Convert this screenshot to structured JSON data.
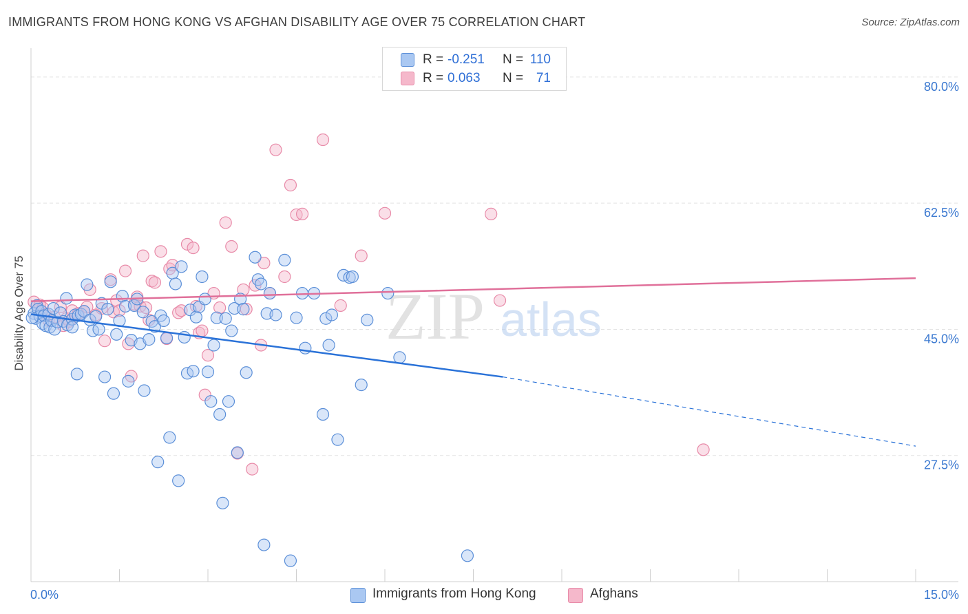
{
  "title": "IMMIGRANTS FROM HONG KONG VS AFGHAN DISABILITY AGE OVER 75 CORRELATION CHART",
  "source": "Source: ZipAtlas.com",
  "watermark": {
    "zip": "ZIP",
    "atlas": "atlas"
  },
  "legend": {
    "rows": [
      {
        "r_label": "R =",
        "r_value": "-0.251",
        "n_label": "N =",
        "n_value": "110"
      },
      {
        "r_label": "R =",
        "r_value": "0.063",
        "n_label": "N =",
        "n_value": "71"
      }
    ]
  },
  "bottom_legend": [
    "Immigrants from Hong Kong",
    "Afghans"
  ],
  "colors": {
    "blue_fill": "#aac8f2",
    "blue_stroke": "#5b8fd8",
    "blue_line": "#2a72d8",
    "pink_fill": "#f5b8cb",
    "pink_stroke": "#e88aa8",
    "pink_line": "#e0709a",
    "tick_label": "#3a78d0",
    "grid": "#e3e3e3"
  },
  "chart_data": {
    "type": "scatter",
    "title": "IMMIGRANTS FROM HONG KONG VS AFGHAN DISABILITY AGE OVER 75 CORRELATION CHART",
    "xlabel": "",
    "ylabel": "Disability Age Over 75",
    "xlim": [
      0,
      15
    ],
    "ylim": [
      10,
      84
    ],
    "x_tick_labels": [
      "0.0%",
      "15.0%"
    ],
    "y_ticks": [
      27.5,
      45.0,
      62.5,
      80.0
    ],
    "y_tick_labels": [
      "27.5%",
      "45.0%",
      "62.5%",
      "80.0%"
    ],
    "grid": "horizontal dashed",
    "legend_position": "top-center",
    "series": [
      {
        "name": "Immigrants from Hong Kong",
        "trend": {
          "x": [
            0.0,
            8.0
          ],
          "y": [
            47.1,
            38.4
          ],
          "dashed_to": [
            15.0,
            28.8
          ]
        },
        "points": [
          [
            0.05,
            47.2
          ],
          [
            0.08,
            46.5
          ],
          [
            0.1,
            48.3
          ],
          [
            0.12,
            47.8
          ],
          [
            0.15,
            46.8
          ],
          [
            0.18,
            47.5
          ],
          [
            0.2,
            45.8
          ],
          [
            0.22,
            46.9
          ],
          [
            0.25,
            45.5
          ],
          [
            0.3,
            47.1
          ],
          [
            0.32,
            45.3
          ],
          [
            0.35,
            46.2
          ],
          [
            0.38,
            47.9
          ],
          [
            0.4,
            45.0
          ],
          [
            0.45,
            46.0
          ],
          [
            0.5,
            47.3
          ],
          [
            0.55,
            46.1
          ],
          [
            0.6,
            49.3
          ],
          [
            0.62,
            45.6
          ],
          [
            0.7,
            46.4
          ],
          [
            0.75,
            47.0
          ],
          [
            0.78,
            38.8
          ],
          [
            0.8,
            46.9
          ],
          [
            0.85,
            47.1
          ],
          [
            0.9,
            47.5
          ],
          [
            0.95,
            51.2
          ],
          [
            1.0,
            46.3
          ],
          [
            1.05,
            44.8
          ],
          [
            1.1,
            46.8
          ],
          [
            1.15,
            45.0
          ],
          [
            1.2,
            48.6
          ],
          [
            1.25,
            38.4
          ],
          [
            1.3,
            47.8
          ],
          [
            1.35,
            51.6
          ],
          [
            1.4,
            36.1
          ],
          [
            1.45,
            44.3
          ],
          [
            1.5,
            46.2
          ],
          [
            1.55,
            49.6
          ],
          [
            1.6,
            48.2
          ],
          [
            1.65,
            37.8
          ],
          [
            1.7,
            43.5
          ],
          [
            1.75,
            48.3
          ],
          [
            1.8,
            49.2
          ],
          [
            1.85,
            43.0
          ],
          [
            1.9,
            47.4
          ],
          [
            1.92,
            36.5
          ],
          [
            2.0,
            43.6
          ],
          [
            2.05,
            46.1
          ],
          [
            2.1,
            45.4
          ],
          [
            2.15,
            26.6
          ],
          [
            2.2,
            46.9
          ],
          [
            2.25,
            46.2
          ],
          [
            2.3,
            43.8
          ],
          [
            2.35,
            30.0
          ],
          [
            2.4,
            52.8
          ],
          [
            2.45,
            51.3
          ],
          [
            2.5,
            24.0
          ],
          [
            2.55,
            53.7
          ],
          [
            2.6,
            43.9
          ],
          [
            2.65,
            38.9
          ],
          [
            2.7,
            47.7
          ],
          [
            2.75,
            39.2
          ],
          [
            2.8,
            46.7
          ],
          [
            2.85,
            48.1
          ],
          [
            2.9,
            52.3
          ],
          [
            2.95,
            49.2
          ],
          [
            3.0,
            39.1
          ],
          [
            3.05,
            35.0
          ],
          [
            3.1,
            42.8
          ],
          [
            3.15,
            46.6
          ],
          [
            3.2,
            33.2
          ],
          [
            3.25,
            20.9
          ],
          [
            3.3,
            46.5
          ],
          [
            3.35,
            35.0
          ],
          [
            3.4,
            44.8
          ],
          [
            3.45,
            47.9
          ],
          [
            3.5,
            27.9
          ],
          [
            3.55,
            49.2
          ],
          [
            3.6,
            47.8
          ],
          [
            3.65,
            39.0
          ],
          [
            3.8,
            55.0
          ],
          [
            3.85,
            51.9
          ],
          [
            3.9,
            51.3
          ],
          [
            3.95,
            15.1
          ],
          [
            4.0,
            47.2
          ],
          [
            4.05,
            50.0
          ],
          [
            4.15,
            47.0
          ],
          [
            4.3,
            54.6
          ],
          [
            4.4,
            12.9
          ],
          [
            4.5,
            46.6
          ],
          [
            4.6,
            50.0
          ],
          [
            4.65,
            42.4
          ],
          [
            4.8,
            50.0
          ],
          [
            4.95,
            33.2
          ],
          [
            5.0,
            46.5
          ],
          [
            5.05,
            42.8
          ],
          [
            5.1,
            47.0
          ],
          [
            5.2,
            29.7
          ],
          [
            5.3,
            52.5
          ],
          [
            5.4,
            52.2
          ],
          [
            5.45,
            52.3
          ],
          [
            5.6,
            37.3
          ],
          [
            5.7,
            46.3
          ],
          [
            6.05,
            50.0
          ],
          [
            6.25,
            41.1
          ],
          [
            7.4,
            13.6
          ],
          [
            0.02,
            46.6
          ],
          [
            0.7,
            45.3
          ]
        ]
      },
      {
        "name": "Afghans",
        "trend": {
          "x": [
            0.0,
            15.0
          ],
          "y": [
            48.9,
            52.1
          ]
        },
        "points": [
          [
            0.05,
            48.8
          ],
          [
            0.1,
            48.3
          ],
          [
            0.15,
            48.4
          ],
          [
            0.2,
            48.0
          ],
          [
            0.25,
            47.1
          ],
          [
            0.3,
            46.2
          ],
          [
            0.4,
            46.7
          ],
          [
            0.5,
            48.1
          ],
          [
            0.55,
            45.5
          ],
          [
            0.6,
            46.5
          ],
          [
            0.65,
            46.1
          ],
          [
            0.7,
            47.6
          ],
          [
            0.8,
            47.2
          ],
          [
            0.9,
            47.5
          ],
          [
            0.95,
            48.1
          ],
          [
            1.0,
            50.5
          ],
          [
            1.1,
            47.0
          ],
          [
            1.2,
            47.9
          ],
          [
            1.25,
            43.4
          ],
          [
            1.35,
            51.9
          ],
          [
            1.4,
            47.4
          ],
          [
            1.45,
            49.0
          ],
          [
            1.5,
            47.6
          ],
          [
            1.6,
            53.1
          ],
          [
            1.65,
            43.0
          ],
          [
            1.7,
            38.5
          ],
          [
            1.75,
            48.5
          ],
          [
            1.8,
            49.5
          ],
          [
            1.85,
            48.2
          ],
          [
            1.9,
            55.2
          ],
          [
            1.95,
            48.0
          ],
          [
            2.0,
            46.3
          ],
          [
            2.05,
            51.7
          ],
          [
            2.1,
            51.5
          ],
          [
            2.2,
            55.8
          ],
          [
            2.3,
            43.7
          ],
          [
            2.35,
            53.4
          ],
          [
            2.4,
            53.9
          ],
          [
            2.5,
            47.3
          ],
          [
            2.55,
            47.6
          ],
          [
            2.65,
            56.8
          ],
          [
            2.75,
            56.3
          ],
          [
            2.8,
            48.2
          ],
          [
            2.85,
            44.5
          ],
          [
            2.9,
            44.8
          ],
          [
            2.95,
            35.9
          ],
          [
            3.0,
            41.4
          ],
          [
            3.1,
            50.0
          ],
          [
            3.2,
            48.0
          ],
          [
            3.3,
            59.8
          ],
          [
            3.4,
            56.5
          ],
          [
            3.5,
            27.8
          ],
          [
            3.6,
            50.5
          ],
          [
            3.65,
            47.8
          ],
          [
            3.75,
            25.6
          ],
          [
            3.8,
            51.1
          ],
          [
            3.9,
            42.8
          ],
          [
            3.95,
            54.2
          ],
          [
            4.05,
            50.0
          ],
          [
            4.15,
            69.9
          ],
          [
            4.3,
            52.3
          ],
          [
            4.4,
            65.0
          ],
          [
            4.5,
            60.9
          ],
          [
            4.6,
            61.0
          ],
          [
            4.95,
            71.3
          ],
          [
            5.25,
            48.3
          ],
          [
            5.6,
            55.2
          ],
          [
            6.0,
            61.1
          ],
          [
            7.95,
            49.0
          ],
          [
            7.8,
            61.0
          ],
          [
            11.4,
            28.3
          ]
        ]
      }
    ]
  }
}
